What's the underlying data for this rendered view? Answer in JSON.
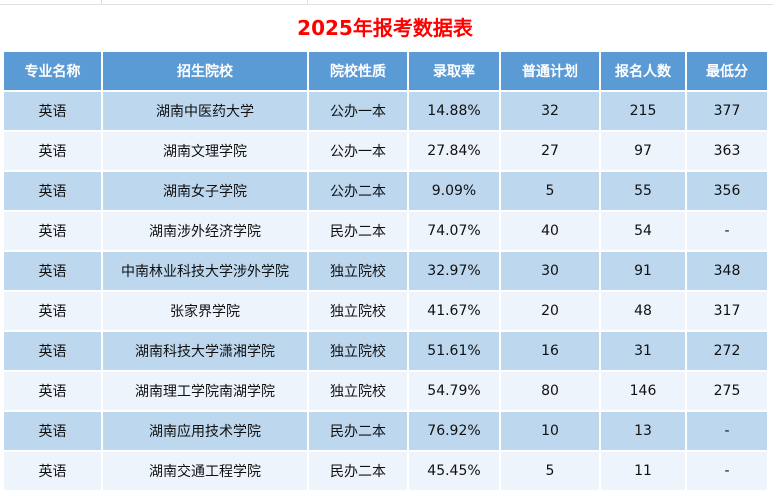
{
  "title": "2025年报考数据表",
  "colors": {
    "header": "#5b9bd5",
    "row_odd": "#bdd7ee",
    "row_even": "#eef4fb",
    "title": "#ff0000"
  },
  "columns": [
    "专业名称",
    "招生院校",
    "院校性质",
    "录取率",
    "普通计划",
    "报名人数",
    "最低分"
  ],
  "rows": [
    [
      "英语",
      "湖南中医药大学",
      "公办一本",
      "14.88%",
      "32",
      "215",
      "377"
    ],
    [
      "英语",
      "湖南文理学院",
      "公办一本",
      "27.84%",
      "27",
      "97",
      "363"
    ],
    [
      "英语",
      "湖南女子学院",
      "公办二本",
      "9.09%",
      "5",
      "55",
      "356"
    ],
    [
      "英语",
      "湖南涉外经济学院",
      "民办二本",
      "74.07%",
      "40",
      "54",
      "-"
    ],
    [
      "英语",
      "中南林业科技大学涉外学院",
      "独立院校",
      "32.97%",
      "30",
      "91",
      "348"
    ],
    [
      "英语",
      "张家界学院",
      "独立院校",
      "41.67%",
      "20",
      "48",
      "317"
    ],
    [
      "英语",
      "湖南科技大学潇湘学院",
      "独立院校",
      "51.61%",
      "16",
      "31",
      "272"
    ],
    [
      "英语",
      "湖南理工学院南湖学院",
      "独立院校",
      "54.79%",
      "80",
      "146",
      "275"
    ],
    [
      "英语",
      "湖南应用技术学院",
      "民办二本",
      "76.92%",
      "10",
      "13",
      "-"
    ],
    [
      "英语",
      "湖南交通工程学院",
      "民办二本",
      "45.45%",
      "5",
      "11",
      "-"
    ]
  ]
}
